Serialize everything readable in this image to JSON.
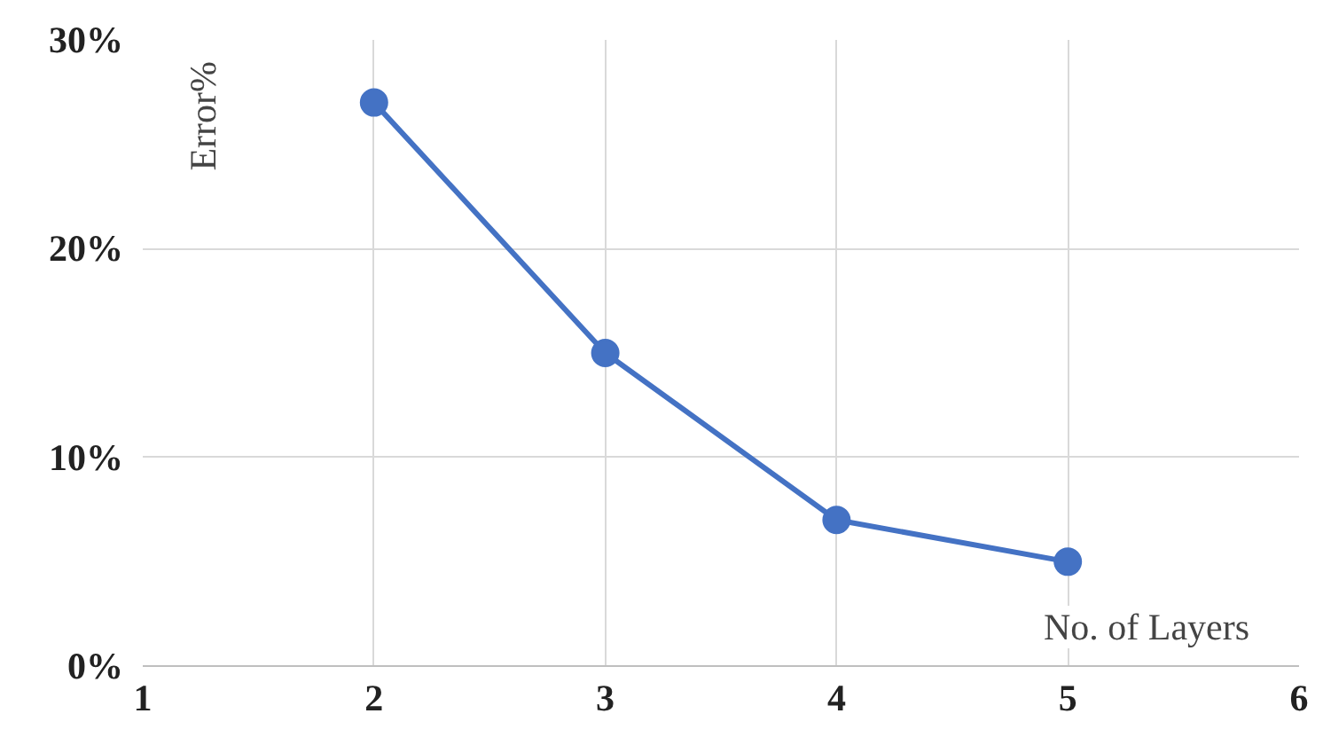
{
  "chart_data": {
    "type": "line",
    "xlabel": "No. of Layers",
    "ylabel": "Error%",
    "x": [
      2,
      3,
      4,
      5
    ],
    "series": [
      {
        "color": "#4472c4",
        "values": [
          27,
          15,
          7,
          5
        ]
      }
    ],
    "xlim": [
      1,
      6
    ],
    "xticks": [
      1,
      2,
      3,
      4,
      5,
      6
    ],
    "ylim": [
      0,
      30
    ],
    "yticks": [
      {
        "value": 0,
        "label": "0%"
      },
      {
        "value": 10,
        "label": "10%"
      },
      {
        "value": 20,
        "label": "20%"
      },
      {
        "value": 30,
        "label": "30%"
      }
    ],
    "grid": true,
    "marker": "circle",
    "line_style": "solid"
  }
}
